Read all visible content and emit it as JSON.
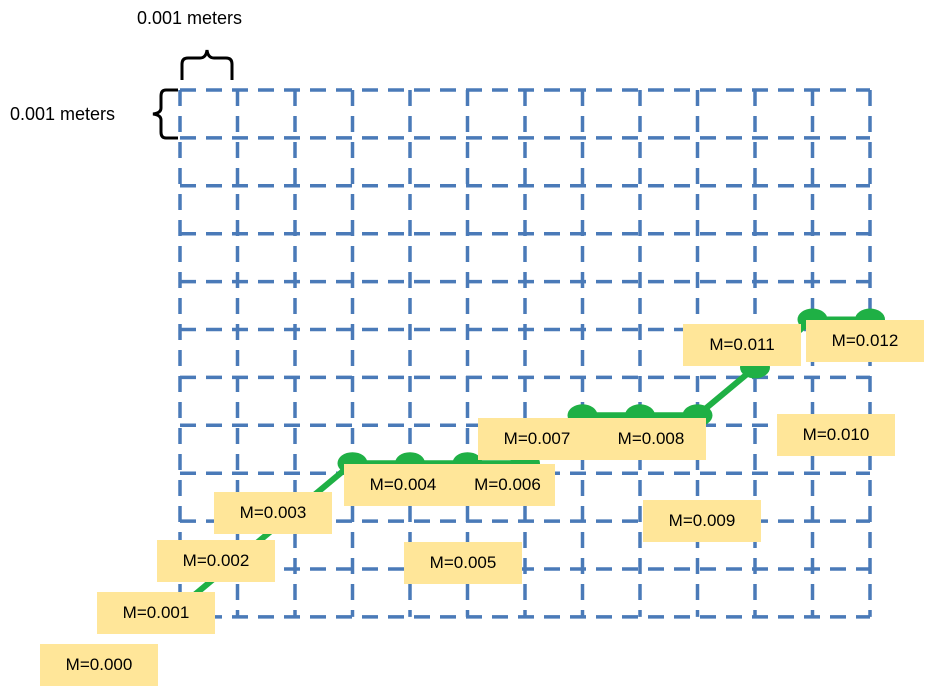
{
  "scale": {
    "horizontal_label": "0.001 meters",
    "vertical_label": "0.001 meters"
  },
  "grid": {
    "columns": 12,
    "rows": 11,
    "line_color": "#4a7ab8",
    "dashed": true
  },
  "path": {
    "color": "#1fb045",
    "points": [
      {
        "label": "M=0.000",
        "col": 0,
        "row": 0
      },
      {
        "label": "M=0.001",
        "col": 1,
        "row": 1
      },
      {
        "label": "M=0.002",
        "col": 2,
        "row": 2
      },
      {
        "label": "M=0.003",
        "col": 3,
        "row": 3
      },
      {
        "label": "M=0.004",
        "col": 4,
        "row": 3
      },
      {
        "label": "M=0.005",
        "col": 5,
        "row": 3
      },
      {
        "label": "M=0.006",
        "col": 6,
        "row": 3
      },
      {
        "label": "M=0.007",
        "col": 7,
        "row": 4
      },
      {
        "label": "M=0.008",
        "col": 8,
        "row": 4
      },
      {
        "label": "M=0.009",
        "col": 9,
        "row": 4
      },
      {
        "label": "M=0.010",
        "col": 10,
        "row": 5
      },
      {
        "label": "M=0.011",
        "col": 11,
        "row": 6
      },
      {
        "label": "M=0.012",
        "col": 12,
        "row": 6
      }
    ]
  },
  "label_color": "#ffe699"
}
